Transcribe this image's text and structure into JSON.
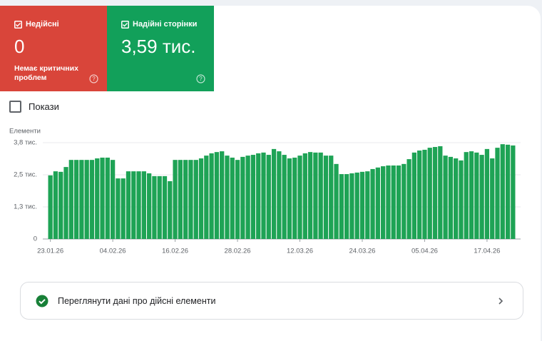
{
  "tiles": [
    {
      "label": "Недійсні",
      "value": "0",
      "note": "Немає критичних проблем",
      "color": "#d9453a"
    },
    {
      "label": "Надійні сторінки",
      "value": "3,59 тис.",
      "color": "#12a05a"
    }
  ],
  "checkbox": "Покази",
  "link": "Переглянути дані про дійсні елементи",
  "chart_data": {
    "type": "bar",
    "y_label": "Елементи",
    "color": "#1ea355",
    "grid": true,
    "ylim": [
      0,
      3800
    ],
    "yticks": [
      0,
      {
        "value": 1267,
        "label": "1,3 тис."
      },
      {
        "value": 2533,
        "label": "2,5 тис."
      },
      {
        "value": 3800,
        "label": "3,8 тис."
      }
    ],
    "categories": [
      "23.01.26",
      null,
      null,
      null,
      null,
      null,
      null,
      null,
      null,
      null,
      null,
      null,
      "04.02.26",
      null,
      null,
      null,
      null,
      null,
      null,
      null,
      null,
      null,
      null,
      null,
      "16.02.26",
      null,
      null,
      null,
      null,
      null,
      null,
      null,
      null,
      null,
      null,
      null,
      "28.02.26",
      null,
      null,
      null,
      null,
      null,
      null,
      null,
      null,
      null,
      null,
      null,
      "12.03.26",
      null,
      null,
      null,
      null,
      null,
      null,
      null,
      null,
      null,
      null,
      null,
      "24.03.26",
      null,
      null,
      null,
      null,
      null,
      null,
      null,
      null,
      null,
      null,
      null,
      "05.04.26",
      null,
      null,
      null,
      null,
      null,
      null,
      null,
      null,
      null,
      null,
      null,
      "17.04.26",
      null,
      null,
      null,
      null,
      null
    ],
    "values": [
      2510,
      2670,
      2650,
      2840,
      3120,
      3120,
      3120,
      3120,
      3120,
      3180,
      3210,
      3210,
      3120,
      2390,
      2390,
      2670,
      2670,
      2670,
      2670,
      2590,
      2480,
      2480,
      2480,
      2280,
      3120,
      3120,
      3120,
      3120,
      3120,
      3180,
      3290,
      3380,
      3430,
      3460,
      3290,
      3210,
      3120,
      3240,
      3290,
      3320,
      3380,
      3410,
      3320,
      3550,
      3460,
      3320,
      3180,
      3210,
      3290,
      3380,
      3430,
      3410,
      3410,
      3290,
      3290,
      2960,
      2560,
      2560,
      2590,
      2620,
      2650,
      2670,
      2760,
      2820,
      2870,
      2900,
      2900,
      2900,
      2960,
      3150,
      3410,
      3490,
      3520,
      3600,
      3630,
      3660,
      3290,
      3240,
      3180,
      3100,
      3430,
      3460,
      3410,
      3320,
      3550,
      3180,
      3600,
      3740,
      3720,
      3690
    ]
  }
}
